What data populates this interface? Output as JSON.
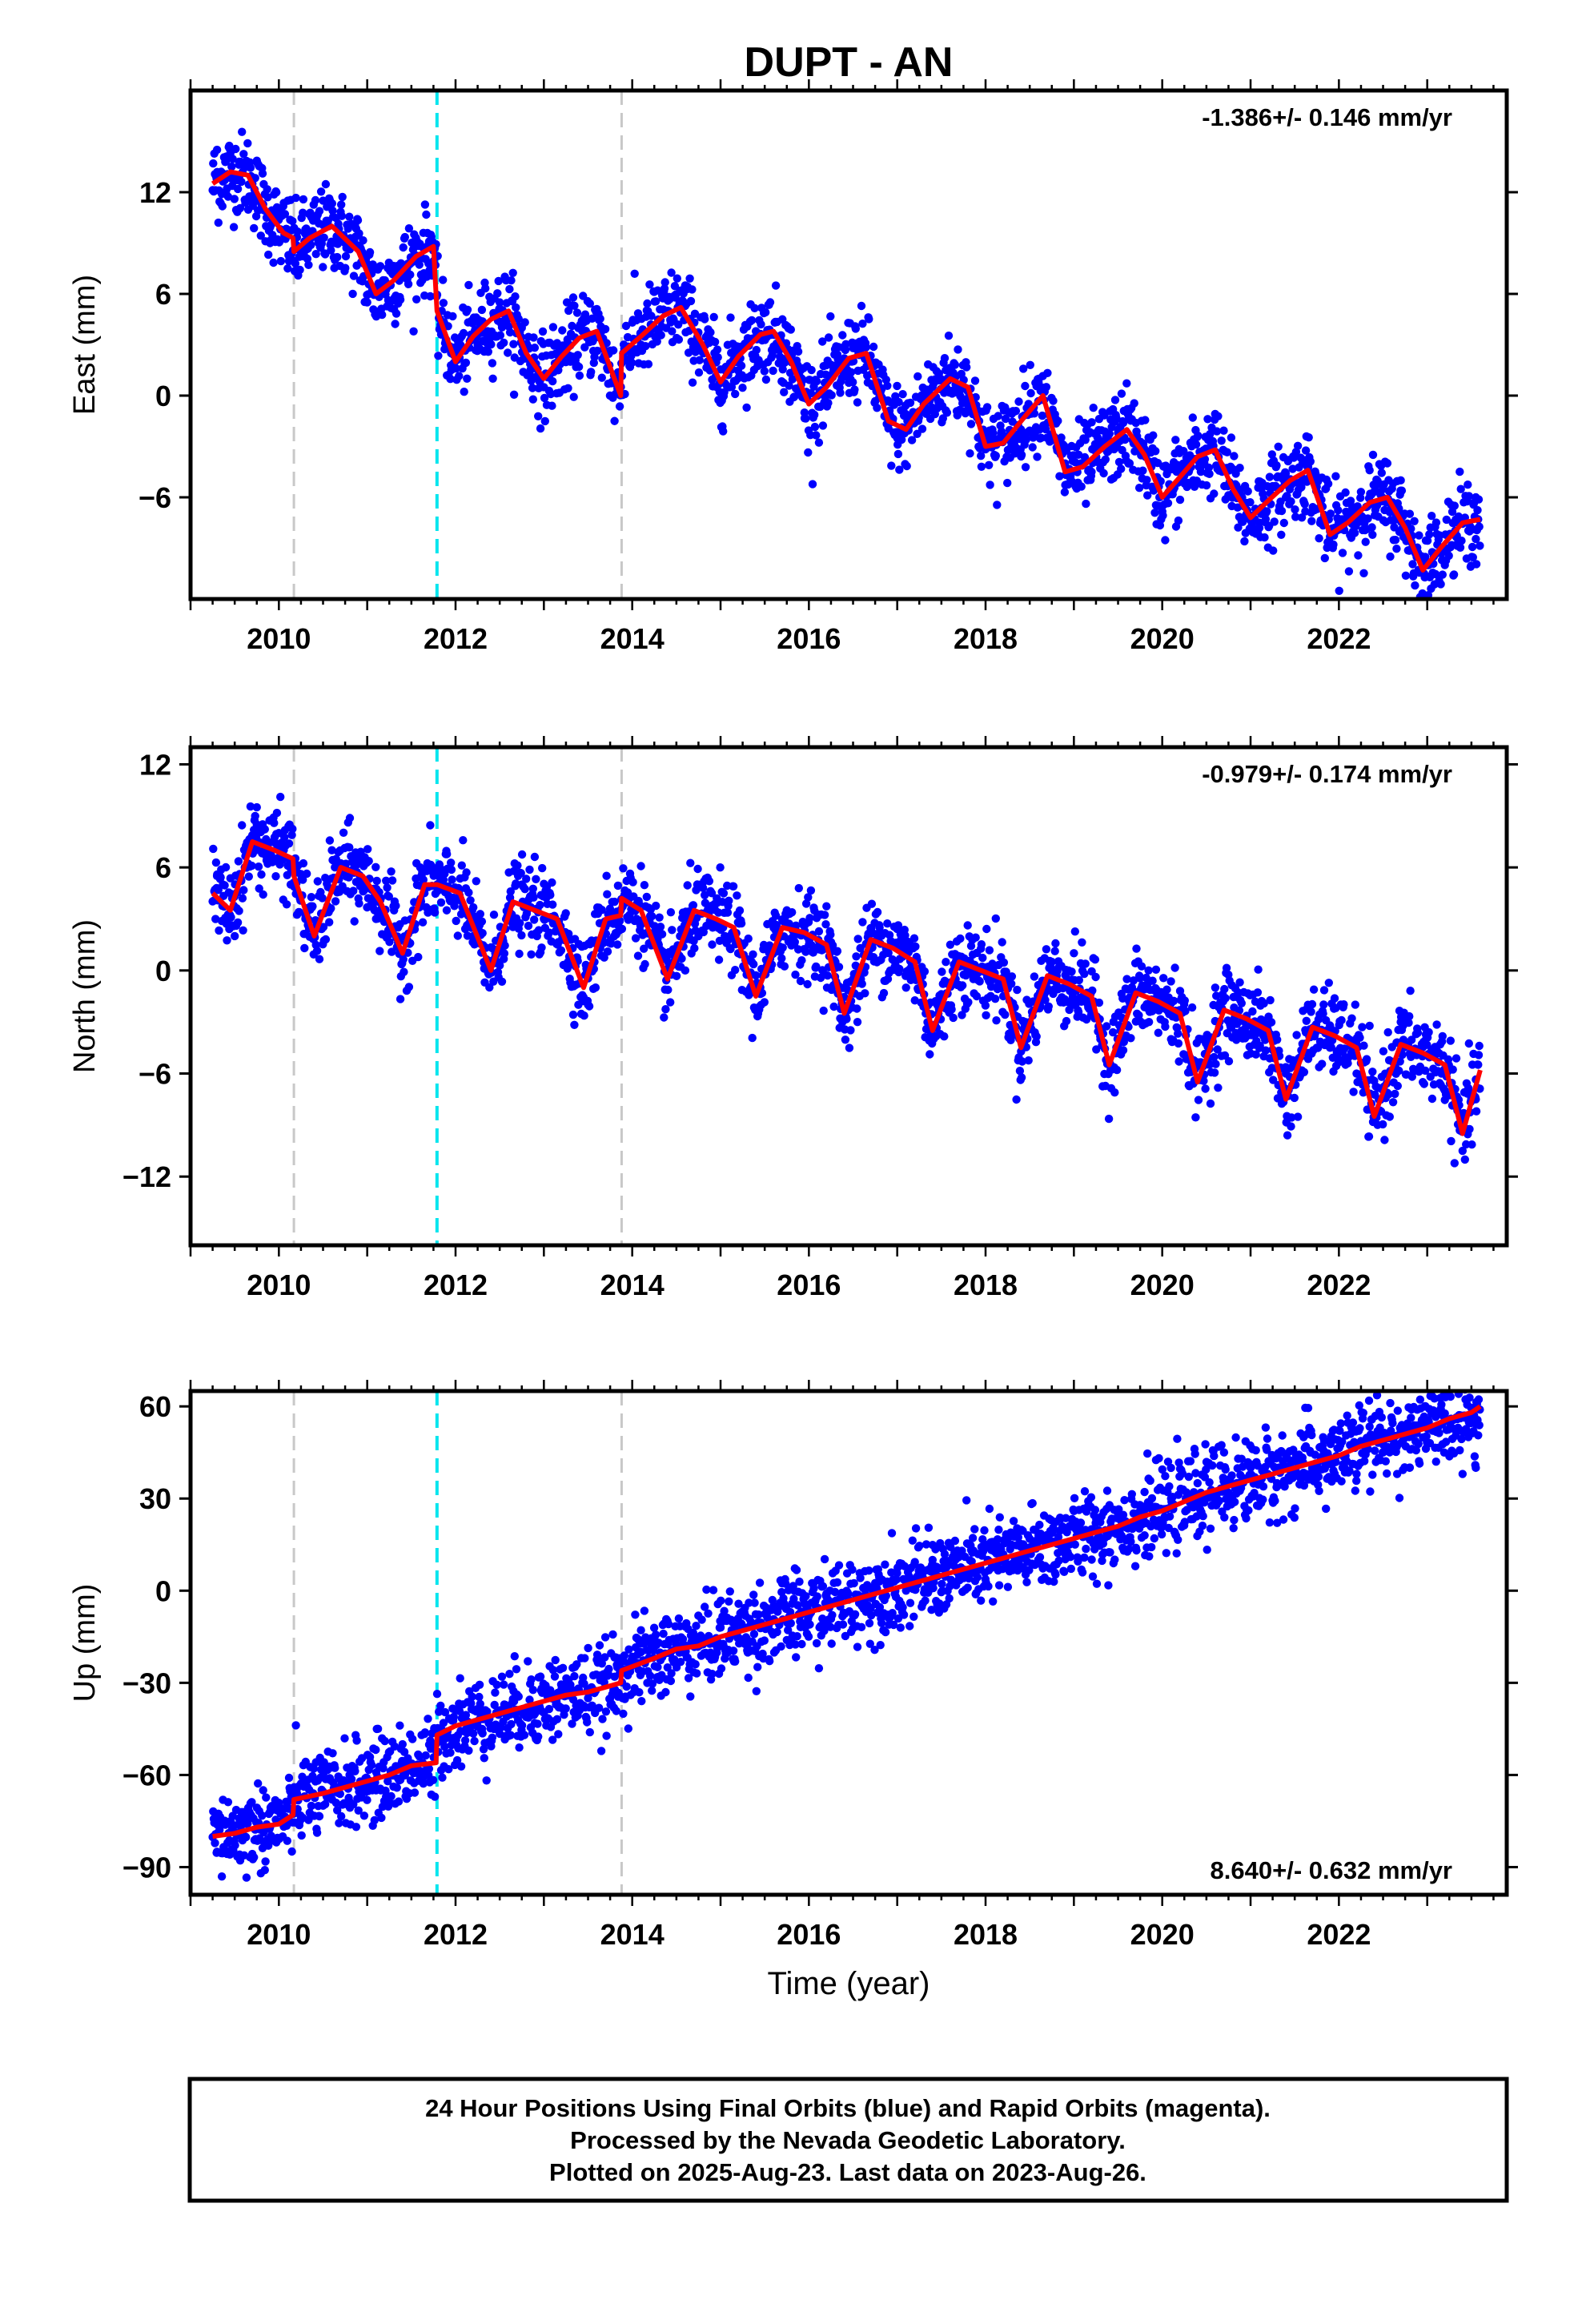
{
  "title": "DUPT - AN",
  "footer": {
    "line1": "24 Hour Positions Using Final Orbits (blue) and Rapid Orbits (magenta).",
    "line2": "Processed by the Nevada Geodetic Laboratory.",
    "line3": "Plotted on 2025-Aug-23. Last data on 2023-Aug-26."
  },
  "colors": {
    "points": "#0000ff",
    "model": "#ff0000",
    "offset_antenna": "#c8c8c8",
    "offset_equipment": "#00e5ee"
  },
  "chart_data": [
    {
      "type": "scatter",
      "panel": "East",
      "ylabel": "East (mm)",
      "xlabel": "",
      "rate_text": "-1.386+/- 0.146 mm/yr",
      "xlim": [
        2009.0,
        2023.9
      ],
      "ylim": [
        -12,
        18
      ],
      "yticks": [
        12,
        6,
        0,
        -6
      ],
      "xticks": [
        2010,
        2012,
        2014,
        2016,
        2018,
        2020,
        2022
      ],
      "offset_lines": [
        {
          "x": 2010.17,
          "kind": "gray"
        },
        {
          "x": 2011.79,
          "kind": "cyan"
        },
        {
          "x": 2013.88,
          "kind": "gray"
        }
      ],
      "series": [
        {
          "kind": "model",
          "x": [
            2009.25,
            2009.45,
            2009.65,
            2009.85,
            2010.05,
            2010.16,
            2010.17,
            2010.35,
            2010.6,
            2010.9,
            2011.1,
            2011.3,
            2011.55,
            2011.75,
            2011.79,
            2012.0,
            2012.2,
            2012.4,
            2012.6,
            2012.8,
            2013.0,
            2013.2,
            2013.4,
            2013.6,
            2013.87,
            2013.88,
            2014.1,
            2014.35,
            2014.55,
            2014.8,
            2015.0,
            2015.2,
            2015.45,
            2015.6,
            2015.8,
            2016.0,
            2016.2,
            2016.45,
            2016.65,
            2016.9,
            2017.1,
            2017.3,
            2017.6,
            2017.8,
            2018.0,
            2018.2,
            2018.45,
            2018.65,
            2018.9,
            2019.1,
            2019.35,
            2019.6,
            2019.8,
            2020.0,
            2020.2,
            2020.4,
            2020.6,
            2020.8,
            2021.0,
            2021.2,
            2021.45,
            2021.65,
            2021.9,
            2022.1,
            2022.35,
            2022.55,
            2022.75,
            2022.95,
            2023.15,
            2023.4,
            2023.6
          ],
          "y": [
            12.5,
            13.2,
            13.0,
            11.0,
            9.6,
            9.3,
            8.5,
            9.3,
            10.0,
            8.5,
            6.0,
            6.8,
            8.2,
            8.8,
            5.0,
            2.0,
            3.5,
            4.5,
            5.0,
            2.5,
            1.0,
            2.3,
            3.4,
            3.8,
            0.0,
            2.5,
            3.5,
            4.7,
            5.2,
            3.0,
            0.8,
            2.3,
            3.6,
            3.8,
            2.0,
            -0.5,
            0.5,
            2.2,
            2.5,
            -1.5,
            -2.0,
            -0.5,
            1.0,
            0.5,
            -3.0,
            -2.8,
            -1.2,
            0.0,
            -4.5,
            -4.2,
            -3.0,
            -2.0,
            -3.5,
            -6.0,
            -4.8,
            -3.6,
            -3.2,
            -5.5,
            -7.2,
            -6.2,
            -5.0,
            -4.4,
            -8.2,
            -7.5,
            -6.3,
            -6.0,
            -7.8,
            -10.3,
            -9.0,
            -7.5,
            -7.3
          ]
        },
        {
          "kind": "points",
          "x": [
            2009.3,
            2009.4,
            2009.55,
            2009.7,
            2009.9,
            2010.1,
            2010.3,
            2010.5,
            2010.75,
            2011.0,
            2011.2,
            2011.45,
            2011.7,
            2011.95,
            2012.25,
            2012.5,
            2012.75,
            2013.0,
            2013.3,
            2013.55,
            2013.8,
            2014.1,
            2014.4,
            2014.6,
            2014.85,
            2015.1,
            2015.4,
            2015.7,
            2015.95,
            2016.25,
            2016.5,
            2016.8,
            2017.0,
            2017.3,
            2017.55,
            2017.85,
            2018.1,
            2018.4,
            2018.6,
            2018.9,
            2019.2,
            2019.5,
            2019.75,
            2020.0,
            2020.3,
            2020.55,
            2020.85,
            2021.1,
            2021.4,
            2021.6,
            2021.9,
            2022.2,
            2022.5,
            2022.7,
            2023.0,
            2023.3,
            2023.55
          ],
          "y": [
            14.5,
            12.0,
            13.8,
            12.5,
            9.0,
            7.5,
            9.8,
            11.5,
            9.0,
            5.5,
            6.8,
            7.5,
            9.0,
            2.5,
            3.0,
            5.5,
            4.0,
            0.5,
            2.0,
            3.5,
            -1.5,
            3.0,
            5.0,
            6.5,
            2.0,
            0.5,
            3.8,
            4.5,
            -1.0,
            1.0,
            2.8,
            0.5,
            -2.5,
            -0.5,
            1.5,
            -1.0,
            -3.5,
            -2.0,
            0.8,
            -4.0,
            -4.5,
            -2.2,
            -3.0,
            -6.5,
            -4.5,
            -3.0,
            -5.8,
            -7.5,
            -6.0,
            -3.8,
            -8.0,
            -6.8,
            -5.5,
            -5.0,
            -10.0,
            -7.5,
            -6.0
          ]
        }
      ]
    },
    {
      "type": "scatter",
      "panel": "North",
      "ylabel": "North (mm)",
      "xlabel": "",
      "rate_text": "-0.979+/- 0.174 mm/yr",
      "xlim": [
        2009.0,
        2023.9
      ],
      "ylim": [
        -16,
        13
      ],
      "yticks": [
        12,
        6,
        0,
        -6,
        -12
      ],
      "xticks": [
        2010,
        2012,
        2014,
        2016,
        2018,
        2020,
        2022
      ],
      "offset_lines": [
        {
          "x": 2010.17,
          "kind": "gray"
        },
        {
          "x": 2011.79,
          "kind": "cyan"
        },
        {
          "x": 2013.88,
          "kind": "gray"
        }
      ],
      "series": [
        {
          "kind": "model",
          "x": [
            2009.25,
            2009.45,
            2009.7,
            2009.95,
            2010.16,
            2010.17,
            2010.4,
            2010.7,
            2010.95,
            2011.15,
            2011.4,
            2011.65,
            2011.79,
            2012.05,
            2012.4,
            2012.65,
            2012.9,
            2013.15,
            2013.45,
            2013.7,
            2013.87,
            2013.88,
            2014.1,
            2014.4,
            2014.7,
            2014.95,
            2015.15,
            2015.4,
            2015.7,
            2015.95,
            2016.2,
            2016.4,
            2016.7,
            2016.95,
            2017.2,
            2017.4,
            2017.7,
            2017.95,
            2018.2,
            2018.4,
            2018.7,
            2018.95,
            2019.2,
            2019.4,
            2019.7,
            2019.95,
            2020.2,
            2020.4,
            2020.7,
            2020.95,
            2021.2,
            2021.4,
            2021.7,
            2021.95,
            2022.2,
            2022.4,
            2022.7,
            2022.95,
            2023.2,
            2023.4,
            2023.6
          ],
          "y": [
            4.5,
            3.5,
            7.5,
            7.0,
            6.5,
            5.5,
            2.0,
            6.0,
            5.5,
            4.0,
            1.0,
            5.0,
            5.0,
            4.5,
            0.0,
            4.0,
            3.5,
            3.0,
            -1.0,
            3.0,
            3.2,
            4.2,
            3.5,
            -0.5,
            3.5,
            3.0,
            2.5,
            -1.5,
            2.5,
            2.2,
            1.5,
            -2.5,
            1.8,
            1.3,
            0.5,
            -3.5,
            0.5,
            0.0,
            -0.5,
            -4.5,
            -0.3,
            -0.8,
            -1.5,
            -5.5,
            -1.3,
            -1.8,
            -2.5,
            -6.5,
            -2.3,
            -2.8,
            -3.5,
            -7.5,
            -3.3,
            -3.8,
            -4.5,
            -8.5,
            -4.3,
            -4.8,
            -5.5,
            -9.5,
            -5.8
          ]
        },
        {
          "kind": "points",
          "x": [
            2009.3,
            2009.5,
            2009.75,
            2010.0,
            2010.3,
            2010.6,
            2010.85,
            2011.1,
            2011.35,
            2011.6,
            2011.9,
            2012.2,
            2012.45,
            2012.75,
            2013.0,
            2013.3,
            2013.5,
            2013.8,
            2014.05,
            2014.3,
            2014.6,
            2014.9,
            2015.2,
            2015.45,
            2015.75,
            2016.0,
            2016.3,
            2016.55,
            2016.8,
            2017.1,
            2017.35,
            2017.6,
            2017.9,
            2018.2,
            2018.45,
            2018.75,
            2019.0,
            2019.3,
            2019.6,
            2019.85,
            2020.1,
            2020.35,
            2020.6,
            2020.9,
            2021.15,
            2021.4,
            2021.65,
            2021.9,
            2022.2,
            2022.45,
            2022.7,
            2022.95,
            2023.2,
            2023.4,
            2023.55
          ],
          "y": [
            5.5,
            2.0,
            9.5,
            8.0,
            3.0,
            7.0,
            6.5,
            3.0,
            2.5,
            6.0,
            3.5,
            2.0,
            1.0,
            5.0,
            3.0,
            0.5,
            -2.0,
            4.0,
            3.0,
            1.5,
            0.0,
            4.5,
            1.0,
            -1.0,
            3.5,
            1.5,
            0.5,
            -3.0,
            2.5,
            -1.0,
            -2.5,
            1.5,
            -1.5,
            -1.5,
            -3.0,
            0.5,
            -2.0,
            -4.0,
            -0.5,
            -3.0,
            -4.0,
            -5.5,
            -1.0,
            -3.5,
            -5.0,
            -6.0,
            -2.0,
            -4.5,
            -6.0,
            -7.5,
            -3.0,
            -6.5,
            -7.0,
            -10.5,
            -7.5
          ]
        }
      ]
    },
    {
      "type": "scatter",
      "panel": "Up",
      "ylabel": "Up (mm)",
      "xlabel": "Time (year)",
      "rate_text": "8.640+/- 0.632 mm/yr",
      "xlim": [
        2009.0,
        2023.9
      ],
      "ylim": [
        -99,
        65
      ],
      "yticks": [
        60,
        30,
        0,
        -30,
        -60,
        -90
      ],
      "xticks": [
        2010,
        2012,
        2014,
        2016,
        2018,
        2020,
        2022
      ],
      "offset_lines": [
        {
          "x": 2010.17,
          "kind": "gray"
        },
        {
          "x": 2011.79,
          "kind": "cyan"
        },
        {
          "x": 2013.88,
          "kind": "gray"
        }
      ],
      "series": [
        {
          "kind": "model",
          "x": [
            2009.25,
            2009.5,
            2009.75,
            2010.0,
            2010.16,
            2010.17,
            2010.5,
            2010.75,
            2011.0,
            2011.25,
            2011.5,
            2011.78,
            2011.79,
            2012.0,
            2012.25,
            2012.5,
            2012.75,
            2013.0,
            2013.25,
            2013.5,
            2013.75,
            2013.87,
            2013.88,
            2014.25,
            2014.5,
            2014.75,
            2015.0,
            2015.25,
            2015.5,
            2015.75,
            2016.0,
            2016.25,
            2016.5,
            2016.75,
            2017.0,
            2017.25,
            2017.5,
            2017.75,
            2018.0,
            2018.25,
            2018.5,
            2018.75,
            2019.0,
            2019.25,
            2019.5,
            2019.75,
            2020.0,
            2020.25,
            2020.5,
            2020.75,
            2021.0,
            2021.25,
            2021.5,
            2021.75,
            2022.0,
            2022.25,
            2022.5,
            2022.75,
            2023.0,
            2023.25,
            2023.5,
            2023.6
          ],
          "y": [
            -80,
            -79,
            -77,
            -76,
            -73,
            -68,
            -66,
            -64,
            -62,
            -60,
            -57,
            -56,
            -47,
            -44,
            -42,
            -40,
            -38,
            -36,
            -34,
            -33,
            -31,
            -30,
            -26,
            -22,
            -19,
            -18,
            -15,
            -13,
            -11,
            -9,
            -7,
            -5,
            -3,
            -1,
            1,
            3,
            5,
            7,
            9,
            11,
            13,
            15,
            17,
            19,
            21,
            24,
            26,
            29,
            32,
            34,
            36,
            38,
            40,
            42,
            44,
            47,
            49,
            51,
            53,
            56,
            58,
            60
          ]
        },
        {
          "kind": "points",
          "x": [
            2009.3,
            2009.6,
            2009.9,
            2010.2,
            2010.5,
            2010.8,
            2011.1,
            2011.4,
            2011.7,
            2012.0,
            2012.3,
            2012.6,
            2012.9,
            2013.2,
            2013.5,
            2013.8,
            2014.1,
            2014.4,
            2014.7,
            2015.0,
            2015.3,
            2015.6,
            2015.9,
            2016.2,
            2016.5,
            2016.8,
            2017.1,
            2017.4,
            2017.7,
            2018.0,
            2018.3,
            2018.6,
            2018.9,
            2019.2,
            2019.5,
            2019.8,
            2020.1,
            2020.4,
            2020.7,
            2021.0,
            2021.3,
            2021.6,
            2021.9,
            2022.2,
            2022.5,
            2022.8,
            2023.1,
            2023.4,
            2023.55
          ],
          "y": [
            -85,
            -75,
            -72,
            -65,
            -70,
            -60,
            -65,
            -50,
            -58,
            -48,
            -45,
            -38,
            -40,
            -32,
            -35,
            -28,
            -20,
            -25,
            -15,
            -12,
            -18,
            -5,
            -10,
            -2,
            -8,
            3,
            0,
            10,
            5,
            15,
            8,
            18,
            12,
            20,
            25,
            18,
            30,
            35,
            45,
            40,
            35,
            50,
            42,
            38,
            45,
            40,
            42,
            38,
            40
          ]
        }
      ]
    }
  ]
}
